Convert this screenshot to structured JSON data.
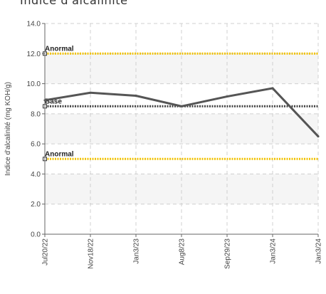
{
  "chart_data": {
    "type": "line",
    "title": "Indice d'alcalinité",
    "ylabel": "Indice d'alcalinité (mg KOH/g)",
    "xlabel": "",
    "ylim": [
      0,
      14
    ],
    "yticks": [
      "0.0",
      "2.0",
      "4.0",
      "6.0",
      "8.0",
      "10.0",
      "12.0",
      "14.0"
    ],
    "categories": [
      "Jul20/22",
      "Nov18/22",
      "Jan3/23",
      "Aug8/23",
      "Sep29/23",
      "Jan3/24",
      "Jan3/24"
    ],
    "series": [
      {
        "values": [
          8.9,
          9.4,
          9.2,
          8.5,
          9.15,
          9.7,
          6.5
        ],
        "color": "#555555"
      }
    ],
    "reference_lines": [
      {
        "label": "Anormal",
        "value": 12.0,
        "color": "#f2c200",
        "style": "dotted"
      },
      {
        "label": "Base",
        "value": 8.5,
        "color": "#444444",
        "style": "dotted"
      },
      {
        "label": "Anormal",
        "value": 5.0,
        "color": "#f2c200",
        "style": "dotted"
      }
    ],
    "grid": true,
    "legend": "none"
  }
}
